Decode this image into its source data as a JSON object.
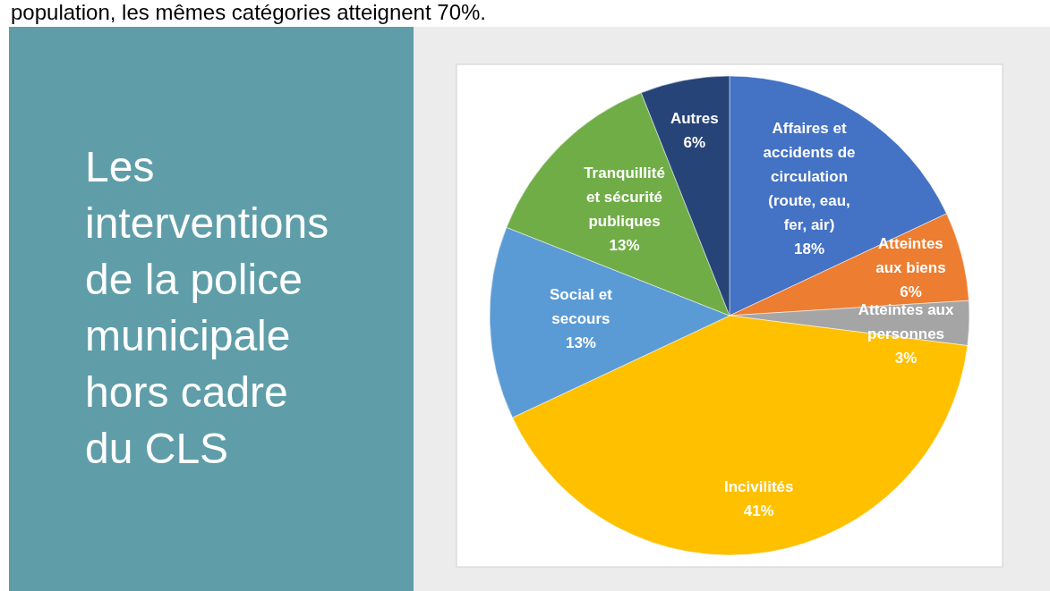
{
  "chart_data": {
    "type": "pie",
    "title": "Les interventions de la police municipale hors cadre du CLS",
    "annotations": [
      "population, les mêmes catégories atteignent 70%."
    ],
    "categories": [
      "Affaires et accidents de circulation (route, eau, fer, air)",
      "Atteintes aux biens",
      "Atteintes aux personnes",
      "Incivilités",
      "Social et secours",
      "Tranquillité et sécurité publiques",
      "Autres"
    ],
    "values": [
      18,
      6,
      3,
      41,
      13,
      13,
      6
    ],
    "colors": [
      "#4472c4",
      "#ed7d31",
      "#a5a5a5",
      "#ffc000",
      "#5b9bd5",
      "#70ad47",
      "#264478"
    ],
    "value_labels": [
      "18%",
      "6%",
      "3%",
      "41%",
      "13%",
      "13%",
      "6%"
    ]
  }
}
